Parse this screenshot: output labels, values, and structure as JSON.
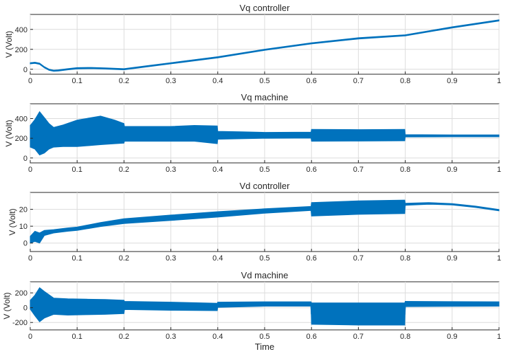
{
  "xlabel": "Time",
  "colors": {
    "series": "#0072BD",
    "grid": "#dcdcdc",
    "axis": "#262626"
  },
  "chart_data": [
    {
      "type": "line",
      "title": "Vq controller",
      "ylabel": "V (Volt)",
      "xlim": [
        0,
        1
      ],
      "ylim": [
        -50,
        550
      ],
      "xticks": [
        0,
        0.1,
        0.2,
        0.3,
        0.4,
        0.5,
        0.6,
        0.7,
        0.8,
        0.9,
        1
      ],
      "xtick_labels": [
        "0",
        "0.1",
        "0.2",
        "0.3",
        "0.4",
        "0.5",
        "0.6",
        "0.7",
        "0.8",
        "0.9",
        "1"
      ],
      "yticks": [
        0,
        200,
        400
      ],
      "ytick_labels": [
        "0",
        "200",
        "400"
      ],
      "series": [
        {
          "name": "Vq controller",
          "x": [
            0,
            0.01,
            0.02,
            0.03,
            0.04,
            0.05,
            0.06,
            0.08,
            0.1,
            0.13,
            0.16,
            0.2,
            0.25,
            0.3,
            0.4,
            0.5,
            0.6,
            0.7,
            0.8,
            0.9,
            1.0
          ],
          "y": [
            60,
            65,
            55,
            20,
            -5,
            -15,
            -12,
            0,
            10,
            12,
            8,
            0,
            30,
            60,
            120,
            195,
            260,
            310,
            340,
            420,
            490
          ],
          "band": [
            6,
            6,
            6,
            6,
            6,
            6,
            6,
            6,
            6,
            6,
            6,
            6,
            6,
            6,
            6,
            6,
            6,
            6,
            6,
            6,
            6
          ]
        }
      ]
    },
    {
      "type": "line",
      "title": "Vq machine",
      "ylabel": "V (Volt)",
      "xlim": [
        0,
        1
      ],
      "ylim": [
        -50,
        550
      ],
      "xticks": [
        0,
        0.1,
        0.2,
        0.3,
        0.4,
        0.5,
        0.6,
        0.7,
        0.8,
        0.9,
        1
      ],
      "xtick_labels": [
        "0",
        "0.1",
        "0.2",
        "0.3",
        "0.4",
        "0.5",
        "0.6",
        "0.7",
        "0.8",
        "0.9",
        "1"
      ],
      "yticks": [
        0,
        200,
        400
      ],
      "ytick_labels": [
        "0",
        "200",
        "400"
      ],
      "series": [
        {
          "name": "Vq machine",
          "x": [
            0,
            0.01,
            0.02,
            0.03,
            0.04,
            0.05,
            0.07,
            0.1,
            0.15,
            0.18,
            0.2,
            0.201,
            0.3,
            0.35,
            0.399,
            0.4,
            0.45,
            0.5,
            0.599,
            0.6,
            0.7,
            0.799,
            0.8,
            0.9,
            1.0
          ],
          "y": [
            220,
            240,
            250,
            230,
            220,
            210,
            225,
            250,
            280,
            265,
            250,
            245,
            245,
            250,
            235,
            230,
            230,
            230,
            232,
            230,
            230,
            232,
            225,
            225,
            225
          ],
          "band": [
            110,
            150,
            220,
            180,
            130,
            100,
            110,
            135,
            145,
            120,
            100,
            75,
            75,
            80,
            90,
            40,
            35,
            30,
            30,
            60,
            58,
            58,
            12,
            10,
            10
          ]
        }
      ]
    },
    {
      "type": "line",
      "title": "Vd controller",
      "ylabel": "V (Volt)",
      "xlim": [
        0,
        1
      ],
      "ylim": [
        -5,
        30
      ],
      "xticks": [
        0,
        0.1,
        0.2,
        0.3,
        0.4,
        0.5,
        0.6,
        0.7,
        0.8,
        0.9,
        1
      ],
      "xtick_labels": [
        "0",
        "0.1",
        "0.2",
        "0.3",
        "0.4",
        "0.5",
        "0.6",
        "0.7",
        "0.8",
        "0.9",
        "1"
      ],
      "yticks": [
        0,
        10,
        20
      ],
      "ytick_labels": [
        "0",
        "10",
        "20"
      ],
      "series": [
        {
          "name": "Vd controller",
          "x": [
            0,
            0.01,
            0.02,
            0.03,
            0.05,
            0.08,
            0.1,
            0.15,
            0.2,
            0.3,
            0.4,
            0.5,
            0.599,
            0.6,
            0.7,
            0.799,
            0.8,
            0.85,
            0.9,
            0.95,
            1.0
          ],
          "y": [
            2,
            4,
            3,
            6,
            7,
            8,
            8.5,
            11,
            13,
            15,
            17,
            19,
            20.5,
            20,
            21,
            21.5,
            23,
            23.5,
            23,
            21.5,
            19.5
          ],
          "band": [
            2,
            3,
            3,
            1.5,
            1,
            1,
            1,
            1.2,
            1.4,
            1.6,
            1.6,
            1.3,
            1.2,
            4,
            4,
            4,
            0.6,
            0.5,
            0.4,
            0.4,
            0.4
          ]
        }
      ]
    },
    {
      "type": "line",
      "title": "Vd machine",
      "ylabel": "V (Volt)",
      "xlim": [
        0,
        1
      ],
      "ylim": [
        -300,
        350
      ],
      "xticks": [
        0,
        0.1,
        0.2,
        0.3,
        0.4,
        0.5,
        0.6,
        0.7,
        0.8,
        0.9,
        1
      ],
      "xtick_labels": [
        "0",
        "0.1",
        "0.2",
        "0.3",
        "0.4",
        "0.5",
        "0.6",
        "0.7",
        "0.8",
        "0.9",
        "1"
      ],
      "yticks": [
        -200,
        0,
        200
      ],
      "ytick_labels": [
        "-200",
        "0",
        "200"
      ],
      "series": [
        {
          "name": "Vd machine",
          "x": [
            0,
            0.01,
            0.02,
            0.03,
            0.05,
            0.08,
            0.12,
            0.16,
            0.2,
            0.201,
            0.3,
            0.399,
            0.4,
            0.5,
            0.599,
            0.6,
            0.7,
            0.799,
            0.8,
            0.9,
            1.0
          ],
          "y": [
            40,
            30,
            40,
            40,
            20,
            10,
            10,
            10,
            10,
            30,
            20,
            10,
            40,
            50,
            50,
            -80,
            -85,
            -85,
            50,
            50,
            50
          ],
          "band": [
            60,
            140,
            230,
            180,
            110,
            110,
            105,
            100,
            90,
            55,
            55,
            50,
            35,
            30,
            30,
            145,
            150,
            150,
            35,
            32,
            30
          ]
        }
      ]
    }
  ]
}
